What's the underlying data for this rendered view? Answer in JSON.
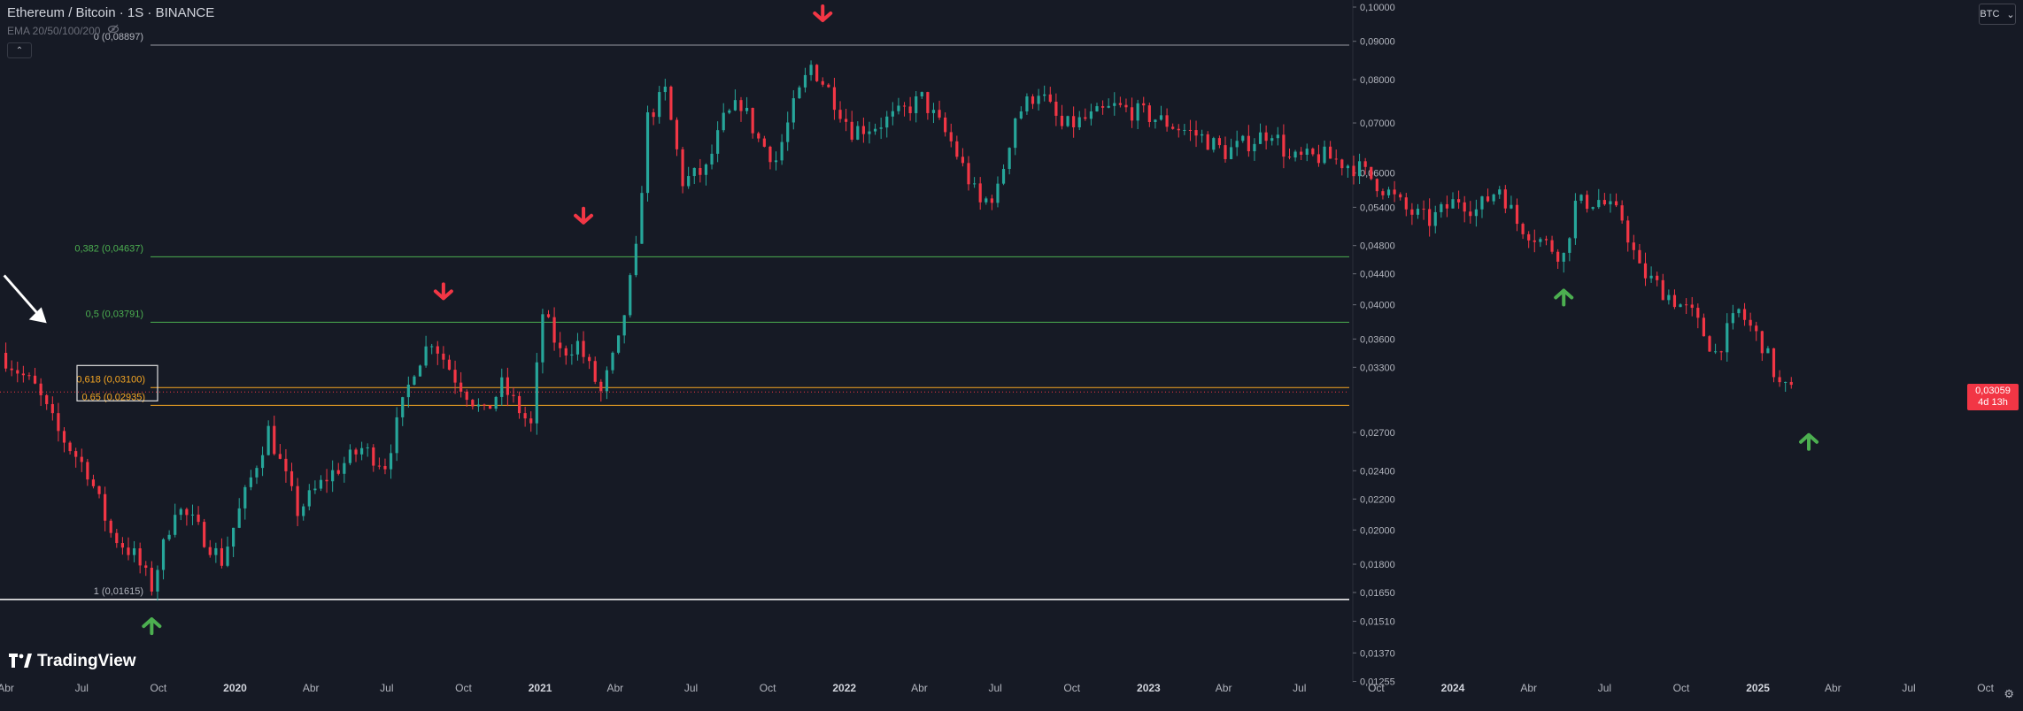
{
  "header": {
    "title": "Ethereum / Bitcoin · 1S · BINANCE",
    "ema_label": "EMA 20/50/100/200",
    "currency": "BTC"
  },
  "brand": {
    "name": "TradingView"
  },
  "price_label": {
    "value": "0,03059",
    "countdown": "4d 13h"
  },
  "fib_labels": [
    {
      "text": "0 (0,08897)",
      "color": "#b2b5be"
    },
    {
      "text": "0,382 (0,04637)",
      "color": "#4caf50"
    },
    {
      "text": "0,5 (0,03791)",
      "color": "#4caf50"
    },
    {
      "text": "0,618 (0,03100)",
      "color": "#f5a623"
    },
    {
      "text": "0,65 (0,02935)",
      "color": "#f5a623"
    },
    {
      "text": "1 (0,01615)",
      "color": "#b2b5be"
    }
  ],
  "y_ticks": [
    "0,10000",
    "0,09000",
    "0,08000",
    "0,07000",
    "0,06000",
    "0,05400",
    "0,04800",
    "0,04400",
    "0,04000",
    "0,03600",
    "0,03300",
    "0,02700",
    "0,02400",
    "0,02200",
    "0,02000",
    "0,01800",
    "0,01650",
    "0,01510",
    "0,01370",
    "0,01255"
  ],
  "x_ticks": [
    {
      "label": "Abr",
      "bold": false
    },
    {
      "label": "Jul",
      "bold": false
    },
    {
      "label": "Oct",
      "bold": false
    },
    {
      "label": "2020",
      "bold": true
    },
    {
      "label": "Abr",
      "bold": false
    },
    {
      "label": "Jul",
      "bold": false
    },
    {
      "label": "Oct",
      "bold": false
    },
    {
      "label": "2021",
      "bold": true
    },
    {
      "label": "Abr",
      "bold": false
    },
    {
      "label": "Jul",
      "bold": false
    },
    {
      "label": "Oct",
      "bold": false
    },
    {
      "label": "2022",
      "bold": true
    },
    {
      "label": "Abr",
      "bold": false
    },
    {
      "label": "Jul",
      "bold": false
    },
    {
      "label": "Oct",
      "bold": false
    },
    {
      "label": "2023",
      "bold": true
    },
    {
      "label": "Abr",
      "bold": false
    },
    {
      "label": "Jul",
      "bold": false
    },
    {
      "label": "Oct",
      "bold": false
    },
    {
      "label": "2024",
      "bold": true
    },
    {
      "label": "Abr",
      "bold": false
    },
    {
      "label": "Jul",
      "bold": false
    },
    {
      "label": "Oct",
      "bold": false
    },
    {
      "label": "2025",
      "bold": true
    },
    {
      "label": "Abr",
      "bold": false
    },
    {
      "label": "Jul",
      "bold": false
    },
    {
      "label": "Oct",
      "bold": false
    }
  ],
  "colors": {
    "up": "#26a69a",
    "down": "#f23645",
    "background": "#161a25",
    "fib_green": "#4caf50",
    "fib_orange": "#f5a623",
    "arrow_down": "#f23645",
    "arrow_up": "#4caf50"
  },
  "icons": [
    "eye-off-icon",
    "chevron-up-icon",
    "chevron-down-icon",
    "tradingview-logo-icon",
    "settings-icon"
  ],
  "chart_data": {
    "type": "candlestick",
    "scale": "log",
    "symbol": "ETH/BTC",
    "interval": "1S",
    "exchange": "BINANCE",
    "ylim": [
      0.0125,
      0.1
    ],
    "xlim": [
      "2019-03-25",
      "2025-11-15"
    ],
    "fib_levels": [
      {
        "level": 0,
        "price": 0.08897
      },
      {
        "level": 0.382,
        "price": 0.04637
      },
      {
        "level": 0.5,
        "price": 0.03791
      },
      {
        "level": 0.618,
        "price": 0.031
      },
      {
        "level": 0.65,
        "price": 0.02935
      },
      {
        "level": 1,
        "price": 0.01615
      }
    ],
    "current_price": 0.03059,
    "path": [
      [
        "2019-03-25",
        0.0345
      ],
      [
        "2019-05-06",
        0.031
      ],
      [
        "2019-06-03",
        0.027
      ],
      [
        "2019-07-08",
        0.024
      ],
      [
        "2019-08-05",
        0.0198
      ],
      [
        "2019-09-02",
        0.0185
      ],
      [
        "2019-09-23",
        0.0168
      ],
      [
        "2019-10-21",
        0.0215
      ],
      [
        "2019-11-11",
        0.0205
      ],
      [
        "2019-12-16",
        0.0182
      ],
      [
        "2020-01-06",
        0.0212
      ],
      [
        "2020-02-10",
        0.0272
      ],
      [
        "2020-03-16",
        0.0212
      ],
      [
        "2020-04-20",
        0.0235
      ],
      [
        "2020-06-01",
        0.0257
      ],
      [
        "2020-06-29",
        0.0245
      ],
      [
        "2020-08-03",
        0.033
      ],
      [
        "2020-08-24",
        0.036
      ],
      [
        "2020-09-21",
        0.032
      ],
      [
        "2020-10-26",
        0.0285
      ],
      [
        "2020-11-16",
        0.0312
      ],
      [
        "2020-12-21",
        0.0275
      ],
      [
        "2021-01-04",
        0.039
      ],
      [
        "2021-01-25",
        0.0345
      ],
      [
        "2021-02-15",
        0.0355
      ],
      [
        "2021-03-15",
        0.0305
      ],
      [
        "2021-04-05",
        0.0355
      ],
      [
        "2021-04-26",
        0.047
      ],
      [
        "2021-05-10",
        0.071
      ],
      [
        "2021-05-31",
        0.077
      ],
      [
        "2021-06-21",
        0.0585
      ],
      [
        "2021-07-19",
        0.0605
      ],
      [
        "2021-08-09",
        0.0705
      ],
      [
        "2021-08-30",
        0.0745
      ],
      [
        "2021-09-20",
        0.0665
      ],
      [
        "2021-10-11",
        0.0625
      ],
      [
        "2021-11-01",
        0.0735
      ],
      [
        "2021-11-22",
        0.0835
      ],
      [
        "2021-12-13",
        0.0775
      ],
      [
        "2022-01-10",
        0.0685
      ],
      [
        "2022-02-07",
        0.0695
      ],
      [
        "2022-03-07",
        0.0718
      ],
      [
        "2022-04-04",
        0.0755
      ],
      [
        "2022-05-09",
        0.066
      ],
      [
        "2022-06-13",
        0.0545
      ],
      [
        "2022-07-04",
        0.0568
      ],
      [
        "2022-07-25",
        0.0715
      ],
      [
        "2022-08-22",
        0.0775
      ],
      [
        "2022-09-19",
        0.069
      ],
      [
        "2022-10-24",
        0.0712
      ],
      [
        "2022-11-21",
        0.0735
      ],
      [
        "2022-12-26",
        0.072
      ],
      [
        "2023-01-30",
        0.0695
      ],
      [
        "2023-03-06",
        0.067
      ],
      [
        "2023-04-03",
        0.064
      ],
      [
        "2023-05-08",
        0.0665
      ],
      [
        "2023-05-29",
        0.0685
      ],
      [
        "2023-06-19",
        0.0625
      ],
      [
        "2023-07-31",
        0.0632
      ],
      [
        "2023-09-11",
        0.0608
      ],
      [
        "2023-10-16",
        0.0565
      ],
      [
        "2023-11-06",
        0.0535
      ],
      [
        "2023-12-04",
        0.0518
      ],
      [
        "2024-01-08",
        0.0555
      ],
      [
        "2024-01-29",
        0.0535
      ],
      [
        "2024-02-26",
        0.0575
      ],
      [
        "2024-03-18",
        0.0515
      ],
      [
        "2024-04-15",
        0.0488
      ],
      [
        "2024-05-13",
        0.0465
      ],
      [
        "2024-05-27",
        0.0545
      ],
      [
        "2024-06-24",
        0.0552
      ],
      [
        "2024-07-22",
        0.0522
      ],
      [
        "2024-08-12",
        0.0445
      ],
      [
        "2024-09-09",
        0.0418
      ],
      [
        "2024-10-14",
        0.0388
      ],
      [
        "2024-11-11",
        0.0345
      ],
      [
        "2024-12-09",
        0.0392
      ],
      [
        "2025-01-06",
        0.0355
      ],
      [
        "2025-01-27",
        0.0312
      ],
      [
        "2025-02-10",
        0.03059
      ]
    ],
    "annotations": [
      {
        "type": "arrow-down",
        "date": "2020-09-07",
        "price": 0.0408
      },
      {
        "type": "arrow-down",
        "date": "2021-02-22",
        "price": 0.0515
      },
      {
        "type": "arrow-down",
        "date": "2021-12-06",
        "price": 0.096
      },
      {
        "type": "arrow-up",
        "date": "2019-09-23",
        "price": 0.0152
      },
      {
        "type": "arrow-up",
        "date": "2024-05-13",
        "price": 0.0418
      },
      {
        "type": "arrow-up",
        "date": "2025-03-03",
        "price": 0.0268
      },
      {
        "type": "arrow-pointer",
        "date": "2019-05-20",
        "price": 0.0378
      }
    ]
  }
}
